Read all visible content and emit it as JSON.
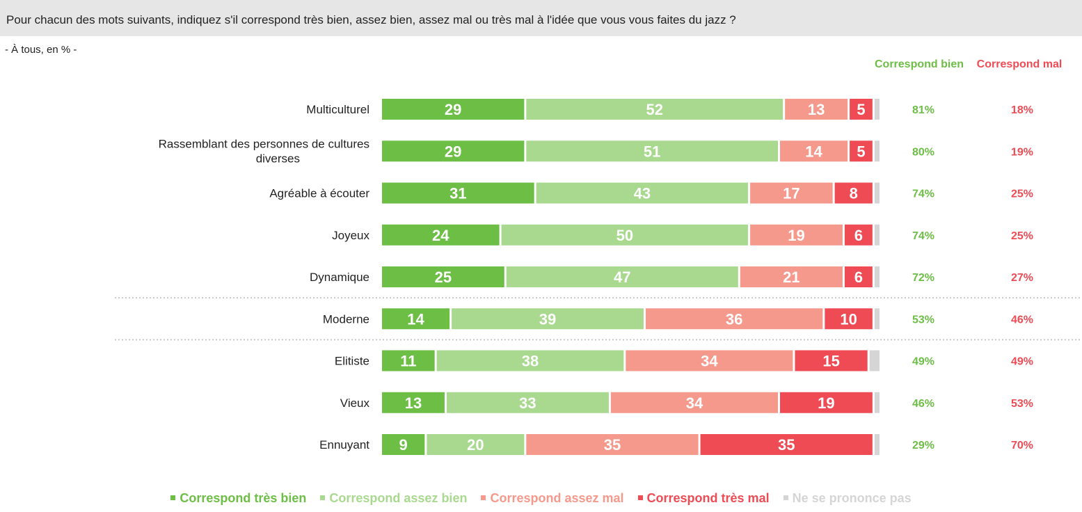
{
  "question": "Pour chacun des mots suivants, indiquez s'il correspond très bien, assez bien, assez mal ou très mal à l'idée que vous vous faites du jazz ?",
  "subtitle": "- À tous, en % -",
  "columns": {
    "good_label": "Correspond bien",
    "bad_label": "Correspond mal"
  },
  "colors": {
    "tres_bien": "#6cbe45",
    "assez_bien": "#a8d98f",
    "assez_mal": "#f4998b",
    "tres_mal": "#ee4b55",
    "nsp": "#d5d5d5"
  },
  "chart_data": {
    "type": "bar",
    "orientation": "horizontal-stacked-100",
    "categories": [
      "Multiculturel",
      "Rassemblant des personnes de cultures diverses",
      "Agréable à écouter",
      "Joyeux",
      "Dynamique",
      "Moderne",
      "Elitiste",
      "Vieux",
      "Ennuyant"
    ],
    "series": [
      {
        "name": "Correspond très bien",
        "values": [
          29,
          29,
          31,
          24,
          25,
          14,
          11,
          13,
          9
        ]
      },
      {
        "name": "Correspond assez bien",
        "values": [
          52,
          51,
          43,
          50,
          47,
          39,
          38,
          33,
          20
        ]
      },
      {
        "name": "Correspond assez mal",
        "values": [
          13,
          14,
          17,
          19,
          21,
          36,
          34,
          34,
          35
        ]
      },
      {
        "name": "Correspond très mal",
        "values": [
          5,
          5,
          8,
          6,
          6,
          10,
          15,
          19,
          35
        ]
      },
      {
        "name": "Ne se prononce pas",
        "values": [
          1,
          1,
          1,
          1,
          1,
          1,
          2,
          1,
          1
        ]
      }
    ],
    "summary": {
      "correspond_bien": [
        "81%",
        "80%",
        "74%",
        "74%",
        "72%",
        "53%",
        "49%",
        "46%",
        "29%"
      ],
      "correspond_mal": [
        "18%",
        "19%",
        "25%",
        "25%",
        "27%",
        "46%",
        "49%",
        "53%",
        "70%"
      ]
    },
    "separators_after": [
      4,
      5
    ],
    "xlim": [
      0,
      100
    ],
    "legend_position": "bottom"
  }
}
